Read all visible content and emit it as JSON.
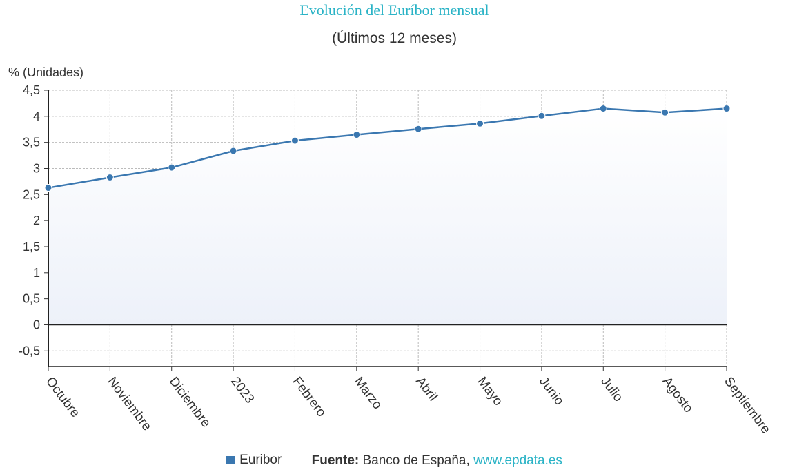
{
  "chart_data": {
    "type": "area",
    "title": "Evolución del Euríbor mensual",
    "subtitle": "(Últimos 12 meses)",
    "ylabel": "% (Unidades)",
    "xlabel": "",
    "categories": [
      "Octubre",
      "Noviembre",
      "Diciembre",
      "2023",
      "Febrero",
      "Marzo",
      "Abril",
      "Mayo",
      "Junio",
      "Julio",
      "Agosto",
      "Septiembre"
    ],
    "series": [
      {
        "name": "Euribor",
        "color": "#3a77b0",
        "values": [
          2.629,
          2.828,
          3.018,
          3.337,
          3.534,
          3.647,
          3.757,
          3.862,
          4.007,
          4.149,
          4.073,
          4.149
        ]
      }
    ],
    "ylim": [
      -0.8,
      4.5
    ],
    "yticks": [
      {
        "value": 4.5,
        "label": "4,5"
      },
      {
        "value": 4,
        "label": "4"
      },
      {
        "value": 3.5,
        "label": "3,5"
      },
      {
        "value": 3,
        "label": "3"
      },
      {
        "value": 2.5,
        "label": "2,5"
      },
      {
        "value": 2,
        "label": "2"
      },
      {
        "value": 1.5,
        "label": "1,5"
      },
      {
        "value": 1,
        "label": "1"
      },
      {
        "value": 0.5,
        "label": "0,5"
      },
      {
        "value": 0,
        "label": "0"
      },
      {
        "value": -0.5,
        "label": "-0,5"
      }
    ],
    "grid": true,
    "legend_position": "bottom-center"
  },
  "footer": {
    "source_label": "Fuente:",
    "source_text": " Banco de España, ",
    "source_link": "www.epdata.es"
  }
}
